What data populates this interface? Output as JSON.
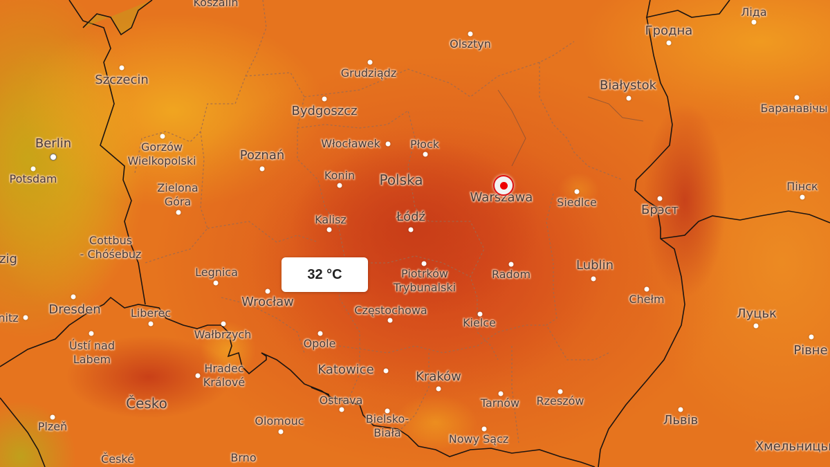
{
  "map": {
    "layer": "temperature",
    "colors": {
      "hot": "#c83d18",
      "warm": "#e6741e",
      "mild": "#f0a520",
      "cool": "#c9a418"
    },
    "tooltip": {
      "value": "32 °C"
    },
    "selected_location": "Warszawa",
    "cities": [
      {
        "id": "koszalin",
        "name": "Koszalin"
      },
      {
        "id": "szczecin",
        "name": "Szczecin"
      },
      {
        "id": "berlin",
        "name": "Berlin"
      },
      {
        "id": "potsdam",
        "name": "Potsdam"
      },
      {
        "id": "gorzow",
        "name": "Gorzów\nWielkopolski"
      },
      {
        "id": "zielona",
        "name": "Zielona\nGóra"
      },
      {
        "id": "cottbus",
        "name": "Cottbus\n- Chóśebuz"
      },
      {
        "id": "leipzig",
        "name": "zig"
      },
      {
        "id": "dresden",
        "name": "Dresden"
      },
      {
        "id": "chemnitz",
        "name": "nitz"
      },
      {
        "id": "liberec",
        "name": "Liberec"
      },
      {
        "id": "usti",
        "name": "Ústí nad\nLabem"
      },
      {
        "id": "walbrzych",
        "name": "Wałbrzych"
      },
      {
        "id": "hradec",
        "name": "Hradec\nKrálové"
      },
      {
        "id": "cesko",
        "name": "Česko"
      },
      {
        "id": "plzen",
        "name": "Plzeň"
      },
      {
        "id": "ceske",
        "name": "České"
      },
      {
        "id": "brno",
        "name": "Brno"
      },
      {
        "id": "olomouc",
        "name": "Olomouc"
      },
      {
        "id": "ostrava",
        "name": "Ostrava"
      },
      {
        "id": "bielsko",
        "name": "Bielsko-\nBiała"
      },
      {
        "id": "katowice",
        "name": "Katowice"
      },
      {
        "id": "opole",
        "name": "Opole"
      },
      {
        "id": "wroclaw",
        "name": "Wrocław"
      },
      {
        "id": "legnica",
        "name": "Legnica"
      },
      {
        "id": "krakow",
        "name": "Kraków"
      },
      {
        "id": "tarnow",
        "name": "Tarnów"
      },
      {
        "id": "rzeszow",
        "name": "Rzeszów"
      },
      {
        "id": "nowysacz",
        "name": "Nowy Sącz"
      },
      {
        "id": "kielce",
        "name": "Kielce"
      },
      {
        "id": "radom",
        "name": "Radom"
      },
      {
        "id": "lublin",
        "name": "Lublin"
      },
      {
        "id": "chelm",
        "name": "Chełm"
      },
      {
        "id": "lutsk",
        "name": "Луцьк"
      },
      {
        "id": "rivne",
        "name": "Рівне"
      },
      {
        "id": "lviv",
        "name": "Львів"
      },
      {
        "id": "khmelnytskyi",
        "name": "Хмельницьк"
      },
      {
        "id": "piotrkow",
        "name": "Piotrków\nTrybunalski"
      },
      {
        "id": "czestochowa",
        "name": "Częstochowa"
      },
      {
        "id": "lodz",
        "name": "Łódź"
      },
      {
        "id": "kalisz",
        "name": "Kalisz"
      },
      {
        "id": "konin",
        "name": "Konin"
      },
      {
        "id": "polska",
        "name": "Polska"
      },
      {
        "id": "wloclawek",
        "name": "Włocławek"
      },
      {
        "id": "plock",
        "name": "Płock"
      },
      {
        "id": "poznan",
        "name": "Poznań"
      },
      {
        "id": "bydgoszcz",
        "name": "Bydgoszcz"
      },
      {
        "id": "grudziadz",
        "name": "Grudziądz"
      },
      {
        "id": "olsztyn",
        "name": "Olsztyn"
      },
      {
        "id": "warszawa",
        "name": "Warszawa"
      },
      {
        "id": "siedlce",
        "name": "Siedlce"
      },
      {
        "id": "bialystok",
        "name": "Białystok"
      },
      {
        "id": "grodno",
        "name": "Гродна"
      },
      {
        "id": "lida",
        "name": "Ліда"
      },
      {
        "id": "baranavichy",
        "name": "Баранавічы"
      },
      {
        "id": "pinsk",
        "name": "Пінск"
      },
      {
        "id": "brest",
        "name": "Брэст"
      }
    ]
  }
}
